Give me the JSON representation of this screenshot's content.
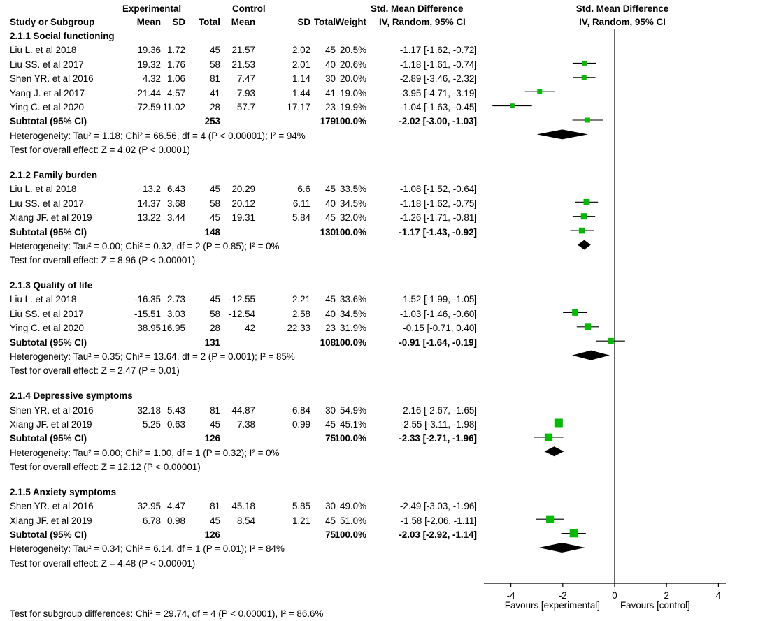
{
  "header": {
    "col_study": "Study or Subgroup",
    "experimental_label": "Experimental",
    "control_label": "Control",
    "col_mean": "Mean",
    "col_sd": "SD",
    "col_total": "Total",
    "col_weight": "Weight",
    "smd_title": "Std. Mean Difference",
    "smd_method": "IV, Random, 95% CI",
    "plot_title": "Std. Mean Difference",
    "plot_method": "IV, Random, 95% CI"
  },
  "groups": [
    {
      "title": "2.1.1 Social functioning",
      "studies": [
        {
          "name": "Liu L. et al 2018",
          "e_mean": "19.36",
          "e_sd": "1.72",
          "e_total": "45",
          "c_mean": "21.57",
          "c_sd": "2.02",
          "c_total": "45",
          "weight": "20.5%",
          "ci_text": "-1.17 [-1.62, -0.72]"
        },
        {
          "name": "Liu SS. et al 2017",
          "e_mean": "19.32",
          "e_sd": "1.76",
          "e_total": "58",
          "c_mean": "21.53",
          "c_sd": "2.01",
          "c_total": "40",
          "weight": "20.6%",
          "ci_text": "-1.18 [-1.61, -0.74]"
        },
        {
          "name": "Shen YR. et al 2016",
          "e_mean": "4.32",
          "e_sd": "1.06",
          "e_total": "81",
          "c_mean": "7.47",
          "c_sd": "1.14",
          "c_total": "30",
          "weight": "20.0%",
          "ci_text": "-2.89 [-3.46, -2.32]"
        },
        {
          "name": "Yang J. et al 2017",
          "e_mean": "-21.44",
          "e_sd": "4.57",
          "e_total": "41",
          "c_mean": "-7.93",
          "c_sd": "1.44",
          "c_total": "41",
          "weight": "19.0%",
          "ci_text": "-3.95 [-4.71, -3.19]"
        },
        {
          "name": "Ying C. et al 2020",
          "e_mean": "-72.59",
          "e_sd": "11.02",
          "e_total": "28",
          "c_mean": "-57.7",
          "c_sd": "17.17",
          "c_total": "23",
          "weight": "19.9%",
          "ci_text": "-1.04 [-1.63, -0.45]"
        }
      ],
      "subtotal": {
        "label": "Subtotal (95% CI)",
        "e_total": "253",
        "c_total": "179",
        "weight": "100.0%",
        "ci_text": "-2.02 [-3.00, -1.03]"
      },
      "heterogeneity": "Heterogeneity: Tau² = 1.18; Chi² = 66.56, df = 4 (P < 0.00001); I² = 94%",
      "overall": "Test for overall effect: Z = 4.02 (P < 0.0001)"
    },
    {
      "title": "2.1.2 Family burden",
      "studies": [
        {
          "name": "Liu L. et al 2018",
          "e_mean": "13.2",
          "e_sd": "6.43",
          "e_total": "45",
          "c_mean": "20.29",
          "c_sd": "6.6",
          "c_total": "45",
          "weight": "33.5%",
          "ci_text": "-1.08 [-1.52, -0.64]"
        },
        {
          "name": "Liu SS. et al 2017",
          "e_mean": "14.37",
          "e_sd": "3.68",
          "e_total": "58",
          "c_mean": "20.12",
          "c_sd": "6.11",
          "c_total": "40",
          "weight": "34.5%",
          "ci_text": "-1.18 [-1.62, -0.75]"
        },
        {
          "name": "Xiang JF. et al 2019",
          "e_mean": "13.22",
          "e_sd": "3.44",
          "e_total": "45",
          "c_mean": "19.31",
          "c_sd": "5.84",
          "c_total": "45",
          "weight": "32.0%",
          "ci_text": "-1.26 [-1.71, -0.81]"
        }
      ],
      "subtotal": {
        "label": "Subtotal (95% CI)",
        "e_total": "148",
        "c_total": "130",
        "weight": "100.0%",
        "ci_text": "-1.17 [-1.43, -0.92]"
      },
      "heterogeneity": "Heterogeneity: Tau² = 0.00; Chi² = 0.32, df = 2 (P = 0.85); I² = 0%",
      "overall": "Test for overall effect: Z = 8.96 (P < 0.00001)"
    },
    {
      "title": "2.1.3 Quality of life",
      "studies": [
        {
          "name": "Liu L. et al 2018",
          "e_mean": "-16.35",
          "e_sd": "2.73",
          "e_total": "45",
          "c_mean": "-12.55",
          "c_sd": "2.21",
          "c_total": "45",
          "weight": "33.6%",
          "ci_text": "-1.52 [-1.99, -1.05]"
        },
        {
          "name": "Liu SS. et al 2017",
          "e_mean": "-15.51",
          "e_sd": "3.03",
          "e_total": "58",
          "c_mean": "-12.54",
          "c_sd": "2.58",
          "c_total": "40",
          "weight": "34.5%",
          "ci_text": "-1.03 [-1.46, -0.60]"
        },
        {
          "name": "Ying C. et al 2020",
          "e_mean": "38.95",
          "e_sd": "16.95",
          "e_total": "28",
          "c_mean": "42",
          "c_sd": "22.33",
          "c_total": "23",
          "weight": "31.9%",
          "ci_text": "-0.15 [-0.71, 0.40]"
        }
      ],
      "subtotal": {
        "label": "Subtotal (95% CI)",
        "e_total": "131",
        "c_total": "108",
        "weight": "100.0%",
        "ci_text": "-0.91 [-1.64, -0.19]"
      },
      "heterogeneity": "Heterogeneity: Tau² = 0.35; Chi² = 13.64, df = 2 (P = 0.001); I² = 85%",
      "overall": "Test for overall effect: Z = 2.47 (P = 0.01)"
    },
    {
      "title": "2.1.4 Depressive symptoms",
      "studies": [
        {
          "name": "Shen YR. et al 2016",
          "e_mean": "32.18",
          "e_sd": "5.43",
          "e_total": "81",
          "c_mean": "44.87",
          "c_sd": "6.84",
          "c_total": "30",
          "weight": "54.9%",
          "ci_text": "-2.16 [-2.67, -1.65]"
        },
        {
          "name": "Xiang JF. et al 2019",
          "e_mean": "5.25",
          "e_sd": "0.63",
          "e_total": "45",
          "c_mean": "7.38",
          "c_sd": "0.99",
          "c_total": "45",
          "weight": "45.1%",
          "ci_text": "-2.55 [-3.11, -1.98]"
        }
      ],
      "subtotal": {
        "label": "Subtotal (95% CI)",
        "e_total": "126",
        "c_total": "75",
        "weight": "100.0%",
        "ci_text": "-2.33 [-2.71, -1.96]"
      },
      "heterogeneity": "Heterogeneity: Tau² = 0.00; Chi² = 1.00, df = 1 (P = 0.32); I² = 0%",
      "overall": "Test for overall effect: Z = 12.12 (P < 0.00001)"
    },
    {
      "title": "2.1.5 Anxiety symptoms",
      "studies": [
        {
          "name": "Shen YR. et al 2016",
          "e_mean": "32.95",
          "e_sd": "4.47",
          "e_total": "81",
          "c_mean": "45.18",
          "c_sd": "5.85",
          "c_total": "30",
          "weight": "49.0%",
          "ci_text": "-2.49 [-3.03, -1.96]"
        },
        {
          "name": "Xiang JF. et al 2019",
          "e_mean": "6.78",
          "e_sd": "0.98",
          "e_total": "45",
          "c_mean": "8.54",
          "c_sd": "1.21",
          "c_total": "45",
          "weight": "51.0%",
          "ci_text": "-1.58 [-2.06, -1.11]"
        }
      ],
      "subtotal": {
        "label": "Subtotal (95% CI)",
        "e_total": "126",
        "c_total": "75",
        "weight": "100.0%",
        "ci_text": "-2.03 [-2.92, -1.14]"
      },
      "heterogeneity": "Heterogeneity: Tau² = 0.34; Chi² = 6.14, df = 1 (P = 0.01); I² = 84%",
      "overall": "Test for overall effect: Z = 4.48 (P < 0.00001)"
    }
  ],
  "footer": "Test for subgroup differences: Chi² = 29.74, df = 4 (P < 0.00001), I² = 86.6%",
  "chart_data": {
    "type": "forest",
    "title": "Std. Mean Difference",
    "subtitle": "IV, Random, 95% CI",
    "xlim": [
      -4.9,
      4.2
    ],
    "x_ticks": [
      -4,
      -2,
      0,
      2,
      4
    ],
    "xlabel_left": "Favours [experimental]",
    "xlabel_right": "Favours [control]",
    "marker_color": "#00bb00",
    "diamond_color": "#000000",
    "groups": [
      {
        "name": "2.1.1 Social functioning",
        "studies": [
          {
            "name": "Liu L. et al 2018",
            "est": -1.17,
            "lo": -1.62,
            "hi": -0.72,
            "weight": 20.5
          },
          {
            "name": "Liu SS. et al 2017",
            "est": -1.18,
            "lo": -1.61,
            "hi": -0.74,
            "weight": 20.6
          },
          {
            "name": "Shen YR. et al 2016",
            "est": -2.89,
            "lo": -3.46,
            "hi": -2.32,
            "weight": 20.0
          },
          {
            "name": "Yang J. et al 2017",
            "est": -3.95,
            "lo": -4.71,
            "hi": -3.19,
            "weight": 19.0
          },
          {
            "name": "Ying C. et al 2020",
            "est": -1.04,
            "lo": -1.63,
            "hi": -0.45,
            "weight": 19.9
          }
        ],
        "pooled": {
          "est": -2.02,
          "lo": -3.0,
          "hi": -1.03
        }
      },
      {
        "name": "2.1.2 Family burden",
        "studies": [
          {
            "name": "Liu L. et al 2018",
            "est": -1.08,
            "lo": -1.52,
            "hi": -0.64,
            "weight": 33.5
          },
          {
            "name": "Liu SS. et al 2017",
            "est": -1.18,
            "lo": -1.62,
            "hi": -0.75,
            "weight": 34.5
          },
          {
            "name": "Xiang JF. et al 2019",
            "est": -1.26,
            "lo": -1.71,
            "hi": -0.81,
            "weight": 32.0
          }
        ],
        "pooled": {
          "est": -1.17,
          "lo": -1.43,
          "hi": -0.92
        }
      },
      {
        "name": "2.1.3 Quality of life",
        "studies": [
          {
            "name": "Liu L. et al 2018",
            "est": -1.52,
            "lo": -1.99,
            "hi": -1.05,
            "weight": 33.6
          },
          {
            "name": "Liu SS. et al 2017",
            "est": -1.03,
            "lo": -1.46,
            "hi": -0.6,
            "weight": 34.5
          },
          {
            "name": "Ying C. et al 2020",
            "est": -0.15,
            "lo": -0.71,
            "hi": 0.4,
            "weight": 31.9
          }
        ],
        "pooled": {
          "est": -0.91,
          "lo": -1.64,
          "hi": -0.19
        }
      },
      {
        "name": "2.1.4 Depressive symptoms",
        "studies": [
          {
            "name": "Shen YR. et al 2016",
            "est": -2.16,
            "lo": -2.67,
            "hi": -1.65,
            "weight": 54.9
          },
          {
            "name": "Xiang JF. et al 2019",
            "est": -2.55,
            "lo": -3.11,
            "hi": -1.98,
            "weight": 45.1
          }
        ],
        "pooled": {
          "est": -2.33,
          "lo": -2.71,
          "hi": -1.96
        }
      },
      {
        "name": "2.1.5 Anxiety symptoms",
        "studies": [
          {
            "name": "Shen YR. et al 2016",
            "est": -2.49,
            "lo": -3.03,
            "hi": -1.96,
            "weight": 49.0
          },
          {
            "name": "Xiang JF. et al 2019",
            "est": -1.58,
            "lo": -2.06,
            "hi": -1.11,
            "weight": 51.0
          }
        ],
        "pooled": {
          "est": -2.03,
          "lo": -2.92,
          "hi": -1.14
        }
      }
    ]
  }
}
